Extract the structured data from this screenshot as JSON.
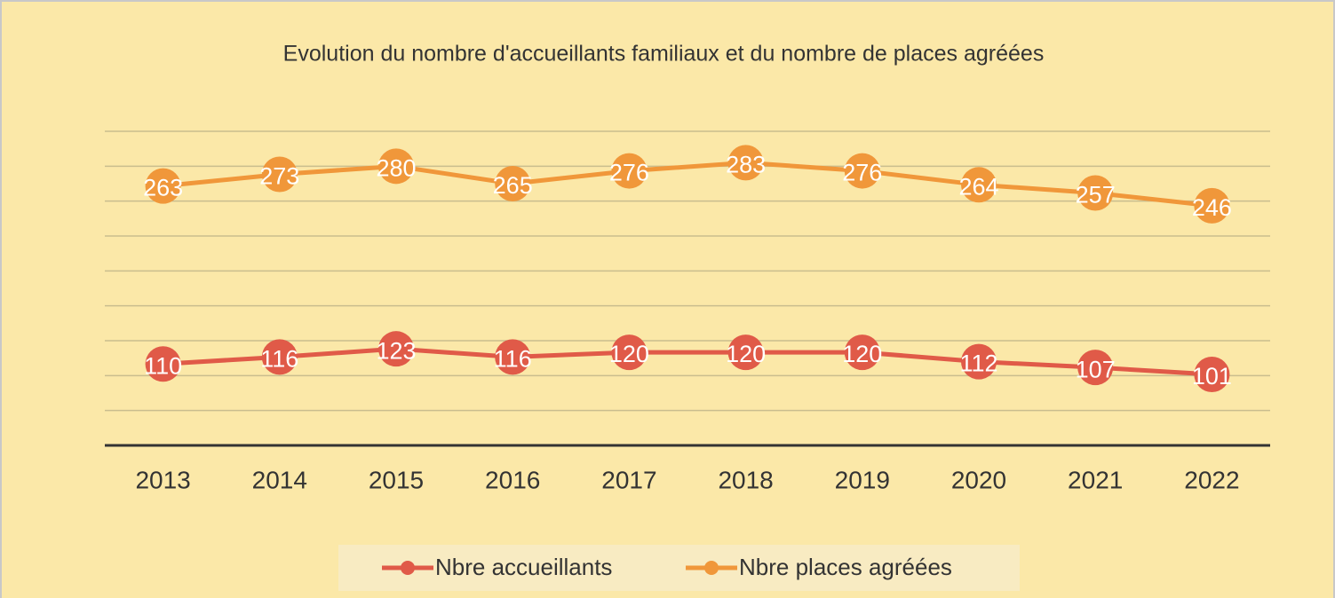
{
  "chart_data": {
    "type": "line",
    "title": "Evolution du nombre d'accueillants familiaux et du nombre de places agréées",
    "categories": [
      "2013",
      "2014",
      "2015",
      "2016",
      "2017",
      "2018",
      "2019",
      "2020",
      "2021",
      "2022"
    ],
    "series": [
      {
        "name": "Nbre accueillants",
        "color": "#e05a48",
        "values": [
          110,
          116,
          123,
          116,
          120,
          120,
          120,
          112,
          107,
          101
        ]
      },
      {
        "name": "Nbre places agréées",
        "color": "#f0973a",
        "values": [
          263,
          273,
          280,
          265,
          276,
          283,
          276,
          264,
          257,
          246
        ]
      }
    ],
    "ylim": [
      40,
      310
    ],
    "yticks": [
      40,
      70,
      100,
      130,
      160,
      190,
      220,
      250,
      280,
      310
    ],
    "grid": true
  }
}
